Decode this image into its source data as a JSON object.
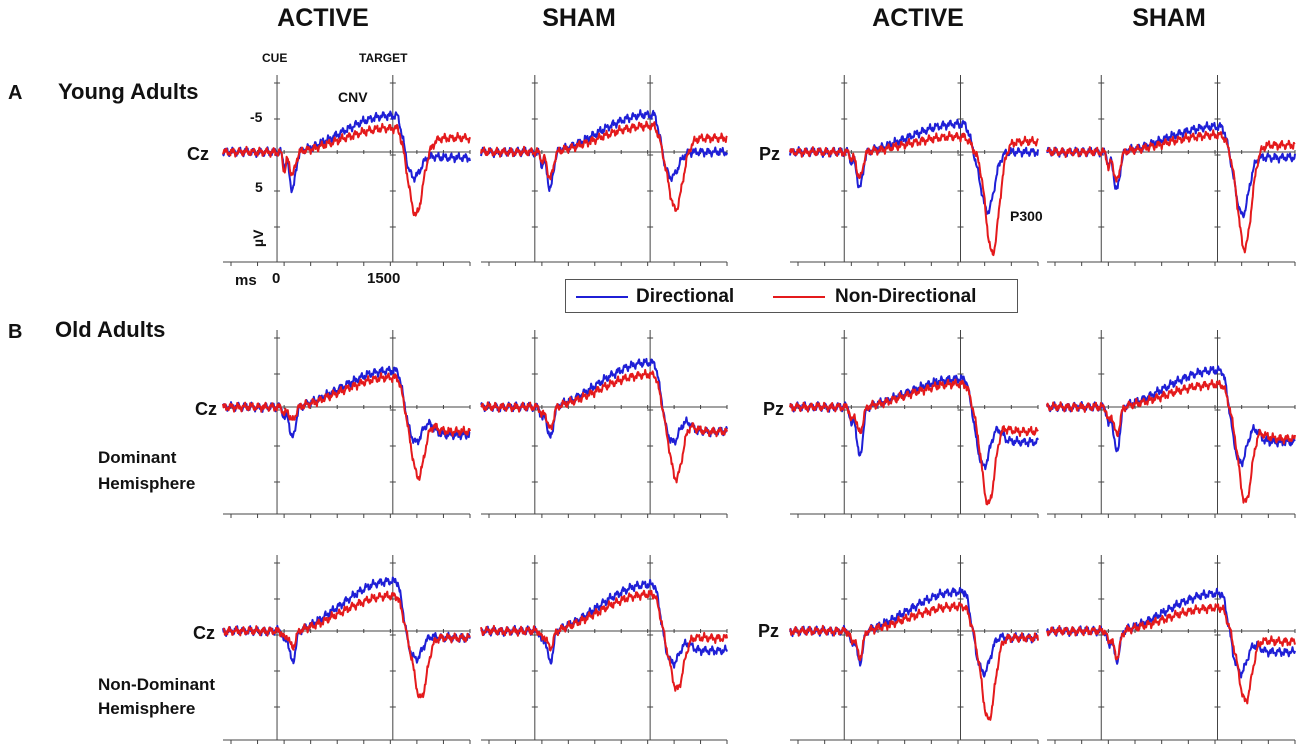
{
  "chart_data": {
    "type": "line",
    "column_titles": [
      "ACTIVE",
      "SHAM",
      "ACTIVE",
      "SHAM"
    ],
    "sections": {
      "A": {
        "letter": "A",
        "title": "Young Adults"
      },
      "B": {
        "letter": "B",
        "title": "Old Adults"
      }
    },
    "row_labels": {
      "dominant": [
        "Dominant",
        "Hemisphere"
      ],
      "non_dominant": [
        "Non-Dominant",
        "Hemisphere"
      ]
    },
    "electrodes": [
      "Cz",
      "Pz"
    ],
    "annotations": {
      "cue": "CUE",
      "target": "TARGET",
      "cnv": "CNV",
      "p300": "P300",
      "y_tick_neg": "-5",
      "y_tick_pos": "5",
      "y_unit": "µV",
      "x_unit": "ms",
      "x_tick_0": "0",
      "x_tick_1500": "1500"
    },
    "axes": {
      "xlim_ms": [
        -700,
        2500
      ],
      "ylim_uV": [
        -10,
        15
      ],
      "y_inverted": true,
      "events_ms": [
        0,
        1500
      ]
    },
    "legend": [
      {
        "name": "Directional",
        "color": "#1f1fd6"
      },
      {
        "name": "Non-Directional",
        "color": "#e41a1c"
      }
    ],
    "panels": [
      {
        "id": "A-Cz-active",
        "row": "A",
        "column": "ACTIVE",
        "electrode": "Cz",
        "directional": {
          "p1": 2.0,
          "n1": 5.4,
          "cnv": -5.2,
          "p3": 3.6,
          "p3_t": 1780,
          "late": 0.8
        },
        "nondirectional": {
          "p1": 2.6,
          "n1": 3.2,
          "cnv": -3.4,
          "p3": 9.0,
          "p3_t": 1800,
          "late": -2.0
        }
      },
      {
        "id": "A-Cz-sham",
        "row": "A",
        "column": "SHAM",
        "electrode": "Cz",
        "directional": {
          "p1": 1.8,
          "n1": 5.3,
          "cnv": -5.3,
          "p3": 3.6,
          "p3_t": 1780,
          "late": 0.0
        },
        "nondirectional": {
          "p1": 1.2,
          "n1": 3.8,
          "cnv": -3.7,
          "p3": 8.2,
          "p3_t": 1830,
          "late": -2.0
        }
      },
      {
        "id": "A-Pz-active",
        "row": "A",
        "column": "ACTIVE",
        "electrode": "Pz",
        "directional": {
          "p1": 1.4,
          "n1": 5.2,
          "cnv": -4.0,
          "p3": 8.5,
          "p3_t": 1850,
          "late": 0.0
        },
        "nondirectional": {
          "p1": 1.0,
          "n1": 3.8,
          "cnv": -2.2,
          "p3": 14.5,
          "p3_t": 1910,
          "late": -1.5
        }
      },
      {
        "id": "A-Pz-sham",
        "row": "A",
        "column": "SHAM",
        "electrode": "Pz",
        "directional": {
          "p1": 1.6,
          "n1": 5.5,
          "cnv": -3.6,
          "p3": 9.0,
          "p3_t": 1820,
          "late": 0.8
        },
        "nondirectional": {
          "p1": 2.2,
          "n1": 4.2,
          "cnv": -2.4,
          "p3": 13.8,
          "p3_t": 1850,
          "late": -1.0
        }
      },
      {
        "id": "B-dom-Cz-active",
        "row": "B-dominant",
        "column": "ACTIVE",
        "electrode": "Cz",
        "directional": {
          "p1": 1.5,
          "n1": 4.5,
          "cnv": -5.2,
          "p3": 5.0,
          "p3_t": 1800,
          "late": 4.0
        },
        "nondirectional": {
          "p1": 1.0,
          "n1": 2.0,
          "cnv": -4.2,
          "p3": 10.0,
          "p3_t": 1830,
          "late": 3.5
        }
      },
      {
        "id": "B-dom-Cz-sham",
        "row": "B-dominant",
        "column": "SHAM",
        "electrode": "Cz",
        "directional": {
          "p1": 1.6,
          "n1": 4.5,
          "cnv": -6.3,
          "p3": 5.0,
          "p3_t": 1800,
          "late": 3.5
        },
        "nondirectional": {
          "p1": 1.2,
          "n1": 3.2,
          "cnv": -4.6,
          "p3": 10.2,
          "p3_t": 1840,
          "late": 3.5
        }
      },
      {
        "id": "B-dom-Pz-active",
        "row": "B-dominant",
        "column": "ACTIVE",
        "electrode": "Pz",
        "directional": {
          "p1": 2.5,
          "n1": 7.2,
          "cnv": -4.0,
          "p3": 8.5,
          "p3_t": 1800,
          "late": 5.0
        },
        "nondirectional": {
          "p1": 2.0,
          "n1": 3.8,
          "cnv": -3.3,
          "p3": 13.9,
          "p3_t": 1860,
          "late": 3.5
        }
      },
      {
        "id": "B-dom-Pz-sham",
        "row": "B-dominant",
        "column": "SHAM",
        "electrode": "Pz",
        "directional": {
          "p1": 2.5,
          "n1": 6.5,
          "cnv": -5.2,
          "p3": 8.0,
          "p3_t": 1800,
          "late": 5.0
        },
        "nondirectional": {
          "p1": 2.0,
          "n1": 4.0,
          "cnv": -3.2,
          "p3": 13.6,
          "p3_t": 1860,
          "late": 4.5
        }
      },
      {
        "id": "B-non-Cz-active",
        "row": "B-non-dominant",
        "column": "ACTIVE",
        "electrode": "Cz",
        "directional": {
          "p1": 1.5,
          "n1": 4.5,
          "cnv": -7.1,
          "p3": 4.0,
          "p3_t": 1800,
          "late": 1.0
        },
        "nondirectional": {
          "p1": 1.0,
          "n1": 2.4,
          "cnv": -5.0,
          "p3": 9.6,
          "p3_t": 1860,
          "late": 1.0
        }
      },
      {
        "id": "B-non-Cz-sham",
        "row": "B-non-dominant",
        "column": "SHAM",
        "electrode": "Cz",
        "directional": {
          "p1": 1.5,
          "n1": 4.5,
          "cnv": -6.6,
          "p3": 4.6,
          "p3_t": 1800,
          "late": 2.8
        },
        "nondirectional": {
          "p1": 1.0,
          "n1": 2.5,
          "cnv": -5.2,
          "p3": 8.3,
          "p3_t": 1850,
          "late": 1.0
        }
      },
      {
        "id": "B-non-Pz-active",
        "row": "B-non-dominant",
        "column": "ACTIVE",
        "electrode": "Pz",
        "directional": {
          "p1": 2.0,
          "n1": 4.5,
          "cnv": -5.6,
          "p3": 6.0,
          "p3_t": 1800,
          "late": 1.0
        },
        "nondirectional": {
          "p1": 1.5,
          "n1": 3.8,
          "cnv": -3.5,
          "p3": 12.7,
          "p3_t": 1860,
          "late": 1.0
        }
      },
      {
        "id": "B-non-Pz-sham",
        "row": "B-non-dominant",
        "column": "SHAM",
        "electrode": "Pz",
        "directional": {
          "p1": 2.0,
          "n1": 4.2,
          "cnv": -5.3,
          "p3": 6.0,
          "p3_t": 1800,
          "late": 3.0
        },
        "nondirectional": {
          "p1": 1.5,
          "n1": 3.8,
          "cnv": -3.3,
          "p3": 10.0,
          "p3_t": 1860,
          "late": 1.5
        }
      }
    ]
  }
}
